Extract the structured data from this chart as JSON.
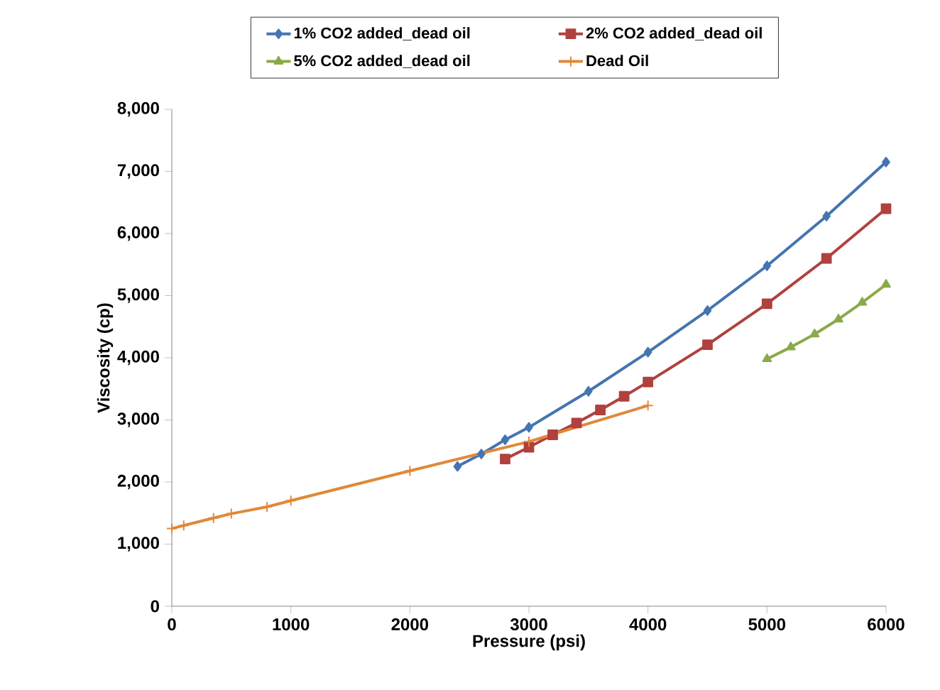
{
  "chart_data": {
    "type": "line",
    "xlabel": "Pressure (psi)",
    "ylabel": "Viscosity (cp)",
    "xlim": [
      0,
      6000
    ],
    "xticks": [
      0,
      1000,
      2000,
      3000,
      4000,
      5000,
      6000
    ],
    "ylim": [
      0,
      8000
    ],
    "yticks": [
      0,
      {
        "value": 1000,
        "label": "1,000"
      },
      {
        "value": 2000,
        "label": "2,000"
      },
      {
        "value": 3000,
        "label": "3,000"
      },
      {
        "value": 4000,
        "label": "4,000"
      },
      {
        "value": 5000,
        "label": "5,000"
      },
      {
        "value": 6000,
        "label": "6,000"
      },
      {
        "value": 7000,
        "label": "7,000"
      },
      {
        "value": 8000,
        "label": "8,000"
      }
    ],
    "grid": false,
    "legend": "top",
    "line_style": "solid",
    "series": [
      {
        "name": "1% CO2 added_dead oil",
        "color": "#4575b0",
        "marker": "diamond",
        "x": [
          2400,
          2600,
          2800,
          3000,
          3500,
          4000,
          4500,
          5000,
          5500,
          6000
        ],
        "values": [
          2250,
          2450,
          2680,
          2880,
          3460,
          4090,
          4760,
          5480,
          6280,
          7150
        ]
      },
      {
        "name": "2% CO2 added_dead oil",
        "color": "#b0413e",
        "marker": "square",
        "x": [
          2800,
          3000,
          3200,
          3400,
          3600,
          3800,
          4000,
          4500,
          5000,
          5500,
          6000
        ],
        "values": [
          2370,
          2560,
          2760,
          2950,
          3160,
          3380,
          3610,
          4210,
          4870,
          5600,
          6400
        ]
      },
      {
        "name": "5% CO2 added_dead oil",
        "color": "#8aaa4a",
        "marker": "triangle",
        "x": [
          5000,
          5200,
          5400,
          5600,
          5800,
          6000
        ],
        "values": [
          3980,
          4170,
          4380,
          4620,
          4890,
          5180
        ]
      },
      {
        "name": "Dead Oil",
        "color": "#e0893a",
        "marker": "cross",
        "x": [
          0,
          100,
          350,
          500,
          800,
          1000,
          2000,
          3000,
          4000
        ],
        "values": [
          1250,
          1300,
          1420,
          1490,
          1600,
          1700,
          2180,
          2650,
          3230
        ]
      }
    ]
  }
}
